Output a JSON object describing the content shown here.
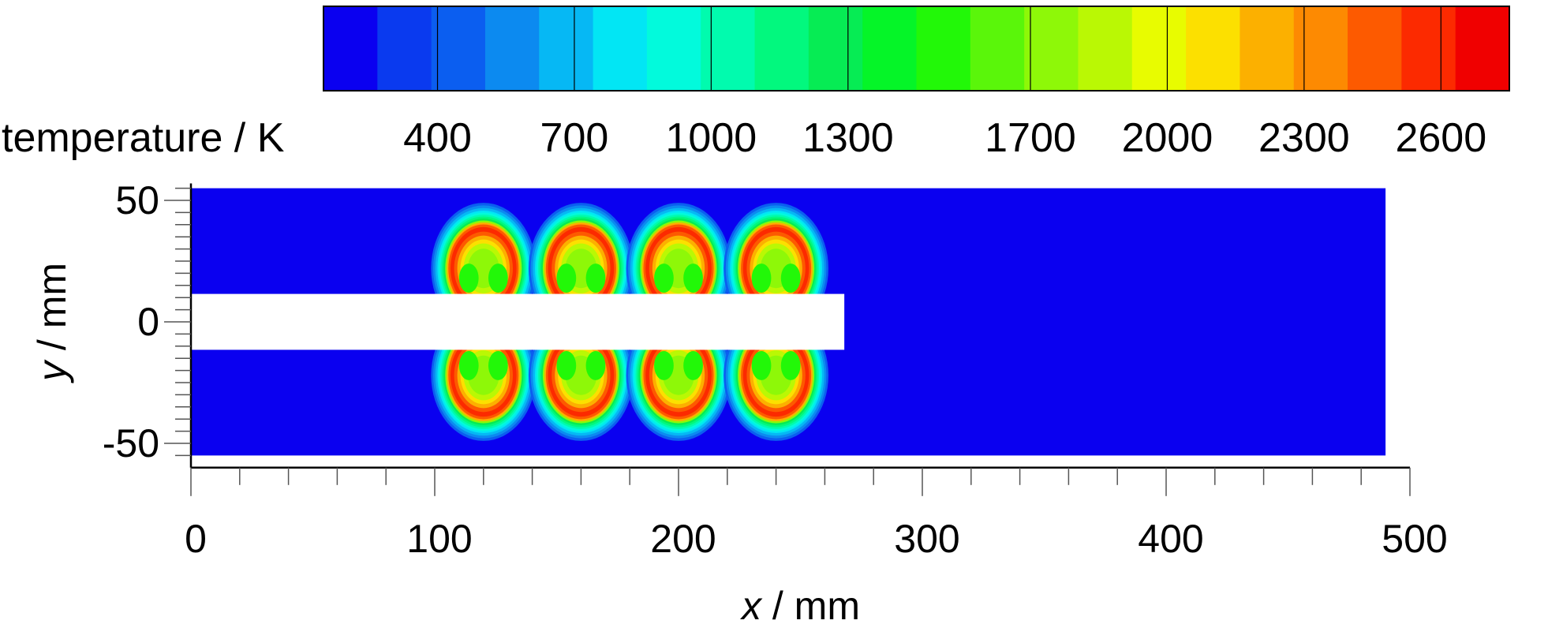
{
  "chart_data": {
    "type": "heatmap",
    "title": "",
    "colorbar": {
      "label": "temperature / K",
      "tick_labels": [
        "400",
        "700",
        "1000",
        "1300",
        "1700",
        "2000",
        "2300",
        "2600"
      ],
      "tick_values": [
        400,
        700,
        1000,
        1300,
        1700,
        2000,
        2300,
        2600
      ],
      "range": [
        150,
        2750
      ],
      "colors": [
        "#0a00f0",
        "#0a3aef",
        "#0b5ef0",
        "#0c8af0",
        "#06b8f4",
        "#02e6f4",
        "#02fadc",
        "#01fbae",
        "#02f87e",
        "#06ec54",
        "#05f528",
        "#22f808",
        "#5af60a",
        "#8ef808",
        "#baf804",
        "#e8fc00",
        "#fce000",
        "#fcb000",
        "#fd8a02",
        "#fd5a00",
        "#fc2a00",
        "#f00000"
      ]
    },
    "xlabel": "x / mm",
    "ylabel": "y / mm",
    "xlim": [
      0,
      500
    ],
    "ylim": [
      -60,
      60
    ],
    "x_tick_labels": [
      "0",
      "100",
      "200",
      "300",
      "400",
      "500"
    ],
    "x_ticks": [
      0,
      100,
      200,
      300,
      400,
      500
    ],
    "y_tick_labels": [
      "50",
      "0",
      "-50"
    ],
    "y_ticks": [
      50,
      0,
      -50
    ],
    "domain_extent": {
      "x": [
        0,
        490
      ],
      "y": [
        -55,
        55
      ]
    },
    "background_temperature": 300,
    "peak_temperature": 2600,
    "insert": {
      "x": [
        0,
        268
      ],
      "y": [
        -11.5,
        11.5
      ]
    },
    "hot_lobes": [
      {
        "x_center": 120,
        "y_side": "top"
      },
      {
        "x_center": 160,
        "y_side": "top"
      },
      {
        "x_center": 200,
        "y_side": "top"
      },
      {
        "x_center": 240,
        "y_side": "top"
      },
      {
        "x_center": 120,
        "y_side": "bottom"
      },
      {
        "x_center": 160,
        "y_side": "bottom"
      },
      {
        "x_center": 200,
        "y_side": "bottom"
      },
      {
        "x_center": 240,
        "y_side": "bottom"
      }
    ]
  }
}
